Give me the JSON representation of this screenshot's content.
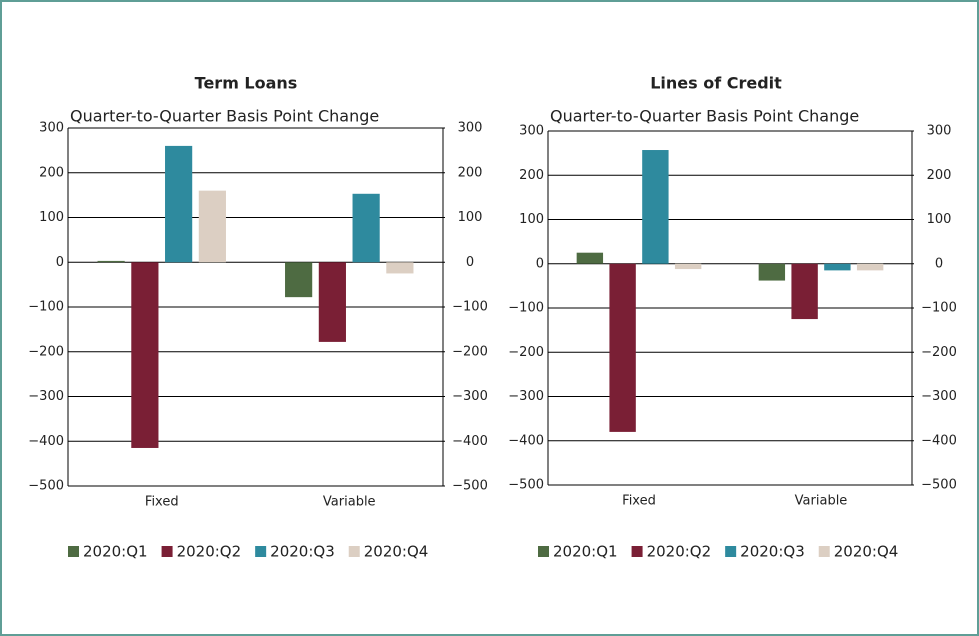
{
  "chart_data": [
    {
      "type": "bar",
      "title": "Term Loans",
      "subtitle": "Quarter-to-Quarter Basis Point Change",
      "categories": [
        "Fixed",
        "Variable"
      ],
      "series": [
        {
          "name": "2020:Q1",
          "color": "#4e6b42",
          "values": [
            3,
            -78
          ]
        },
        {
          "name": "2020:Q2",
          "color": "#7a1f35",
          "values": [
            -415,
            -178
          ]
        },
        {
          "name": "2020:Q3",
          "color": "#2e8a9e",
          "values": [
            260,
            153
          ]
        },
        {
          "name": "2020:Q4",
          "color": "#dccfc3",
          "values": [
            160,
            -25
          ]
        }
      ],
      "ylim": [
        -500,
        300
      ],
      "yticks": [
        {
          "value": -500,
          "label": "−500"
        },
        {
          "value": -400,
          "label": "−400"
        },
        {
          "value": -300,
          "label": "−300"
        },
        {
          "value": -200,
          "label": "−200"
        },
        {
          "value": -100,
          "label": "−100"
        },
        0,
        100,
        200,
        300
      ],
      "y2lim": [
        -500,
        300
      ],
      "y2ticks": [
        {
          "value": -500,
          "label": "−500"
        },
        {
          "value": -400,
          "label": "−400"
        },
        {
          "value": -300,
          "label": "−300"
        },
        {
          "value": -200,
          "label": "−200"
        },
        {
          "value": -100,
          "label": "−100"
        },
        0,
        100,
        200,
        300
      ],
      "grid": true,
      "legend": "bottom"
    },
    {
      "type": "bar",
      "title": "Lines of Credit",
      "subtitle": "Quarter-to-Quarter Basis Point Change",
      "categories": [
        "Fixed",
        "Variable"
      ],
      "series": [
        {
          "name": "2020:Q1",
          "color": "#4e6b42",
          "values": [
            25,
            -38
          ]
        },
        {
          "name": "2020:Q2",
          "color": "#7a1f35",
          "values": [
            -380,
            -125
          ]
        },
        {
          "name": "2020:Q3",
          "color": "#2e8a9e",
          "values": [
            257,
            -15
          ]
        },
        {
          "name": "2020:Q4",
          "color": "#dccfc3",
          "values": [
            -12,
            -15
          ]
        }
      ],
      "ylim": [
        -500,
        300
      ],
      "yticks": [
        {
          "value": -500,
          "label": "−500"
        },
        {
          "value": -400,
          "label": "−400"
        },
        {
          "value": -300,
          "label": "−300"
        },
        {
          "value": -200,
          "label": "−200"
        },
        {
          "value": -100,
          "label": "−100"
        },
        0,
        100,
        200,
        300
      ],
      "y2lim": [
        -500,
        300
      ],
      "y2ticks": [
        {
          "value": -500,
          "label": "−500"
        },
        {
          "value": -400,
          "label": "−400"
        },
        {
          "value": -300,
          "label": "−300"
        },
        {
          "value": -200,
          "label": "−200"
        },
        {
          "value": -100,
          "label": "−100"
        },
        0,
        100,
        200,
        300
      ],
      "grid": true,
      "legend": "bottom"
    }
  ]
}
